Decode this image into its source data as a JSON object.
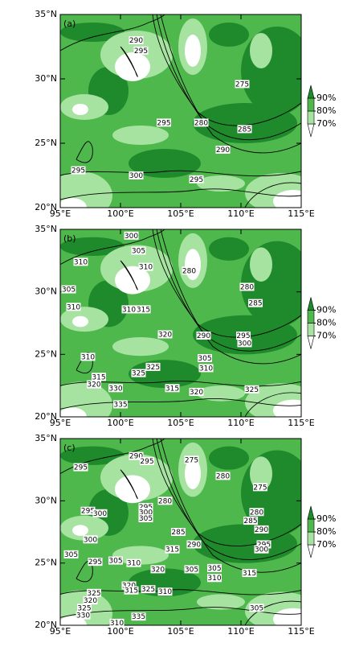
{
  "chart_data": [
    {
      "type": "contour",
      "title": "(a)",
      "xlim": [
        95,
        115
      ],
      "ylim": [
        20,
        35
      ],
      "xticks": [
        {
          "value": 95,
          "label": "95°E"
        },
        {
          "value": 100,
          "label": "100°E"
        },
        {
          "value": 105,
          "label": "105°E"
        },
        {
          "value": 110,
          "label": "110°E"
        },
        {
          "value": 115,
          "label": "115°E"
        }
      ],
      "yticks": [
        {
          "value": 20,
          "label": "20°N"
        },
        {
          "value": 25,
          "label": "25°N"
        },
        {
          "value": 30,
          "label": "30°N"
        },
        {
          "value": 35,
          "label": "35°N"
        }
      ],
      "colorbar": {
        "colors": [
          "#ffffff",
          "#a6e3a0",
          "#4fb84c",
          "#1f8a2b"
        ],
        "ticks": [
          {
            "value": 90,
            "label": "90%"
          },
          {
            "value": 80,
            "label": "80%"
          },
          {
            "value": 70,
            "label": "70%"
          }
        ]
      },
      "contour_labels": {
        "x": [
          101.3,
          101.7,
          110.1,
          103.6,
          106.7,
          110.3,
          108.5,
          96.5,
          101.3,
          106.3
        ],
        "y": [
          33.0,
          32.2,
          29.6,
          26.6,
          26.6,
          26.1,
          24.5,
          22.9,
          22.5,
          22.2
        ],
        "values": [
          290,
          295,
          275,
          295,
          280,
          285,
          290,
          295,
          300,
          295
        ]
      }
    },
    {
      "type": "contour",
      "title": "(b)",
      "xlim": [
        95,
        115
      ],
      "ylim": [
        20,
        35
      ],
      "xticks": [
        {
          "value": 95,
          "label": "95°E"
        },
        {
          "value": 100,
          "label": "100°E"
        },
        {
          "value": 105,
          "label": "105°E"
        },
        {
          "value": 110,
          "label": "110°E"
        },
        {
          "value": 115,
          "label": "115°E"
        }
      ],
      "yticks": [
        {
          "value": 20,
          "label": "20°N"
        },
        {
          "value": 25,
          "label": "25°N"
        },
        {
          "value": 30,
          "label": "30°N"
        },
        {
          "value": 35,
          "label": "35°N"
        }
      ],
      "colorbar": {
        "colors": [
          "#ffffff",
          "#a6e3a0",
          "#4fb84c",
          "#1f8a2b"
        ],
        "ticks": [
          {
            "value": 90,
            "label": "90%"
          },
          {
            "value": 80,
            "label": "80%"
          },
          {
            "value": 70,
            "label": "70%"
          }
        ]
      },
      "contour_labels": {
        "x": [
          100.9,
          101.5,
          96.7,
          102.1,
          105.7,
          95.7,
          96.1,
          100.7,
          101.9,
          110.5,
          111.2,
          103.7,
          106.9,
          110.2,
          110.3,
          107.0,
          107.1,
          97.3,
          98.2,
          97.8,
          102.7,
          101.5,
          99.6,
          100.0,
          104.3,
          106.3,
          110.9
        ],
        "y": [
          34.5,
          33.3,
          32.4,
          32.0,
          31.7,
          30.2,
          28.8,
          28.6,
          28.6,
          30.4,
          29.1,
          26.6,
          26.5,
          26.5,
          25.9,
          24.7,
          23.9,
          24.8,
          23.2,
          22.6,
          24.0,
          23.5,
          22.3,
          21.0,
          22.3,
          22.0,
          22.2
        ],
        "values": [
          300,
          305,
          310,
          310,
          280,
          305,
          310,
          310,
          315,
          280,
          285,
          320,
          290,
          295,
          300,
          305,
          310,
          310,
          315,
          320,
          325,
          325,
          330,
          335,
          315,
          320,
          325
        ]
      }
    },
    {
      "type": "contour",
      "title": "(c)",
      "xlim": [
        95,
        115
      ],
      "ylim": [
        20,
        35
      ],
      "xticks": [
        {
          "value": 95,
          "label": "95°E"
        },
        {
          "value": 100,
          "label": "100°E"
        },
        {
          "value": 105,
          "label": "105°E"
        },
        {
          "value": 110,
          "label": "110°E"
        },
        {
          "value": 115,
          "label": "115°E"
        }
      ],
      "yticks": [
        {
          "value": 20,
          "label": "20°N"
        },
        {
          "value": 25,
          "label": "25°N"
        },
        {
          "value": 30,
          "label": "30°N"
        },
        {
          "value": 35,
          "label": "35°N"
        }
      ],
      "colorbar": {
        "colors": [
          "#ffffff",
          "#a6e3a0",
          "#4fb84c",
          "#1f8a2b"
        ],
        "ticks": [
          {
            "value": 90,
            "label": "90%"
          },
          {
            "value": 80,
            "label": "80%"
          },
          {
            "value": 70,
            "label": "70%"
          }
        ]
      },
      "contour_labels": {
        "x": [
          101.3,
          102.2,
          96.7,
          105.9,
          108.5,
          111.6,
          97.3,
          98.3,
          102.1,
          102.1,
          102.1,
          103.7,
          111.3,
          110.8,
          111.7,
          97.5,
          104.8,
          106.1,
          104.3,
          111.9,
          111.7,
          95.9,
          97.9,
          99.6,
          101.1,
          103.1,
          105.9,
          107.8,
          107.8,
          110.7,
          100.7,
          100.9,
          102.3,
          103.7,
          97.8,
          97.5,
          97.0,
          96.9,
          101.5,
          99.7,
          111.3
        ],
        "y": [
          33.6,
          33.2,
          32.7,
          33.3,
          32.0,
          31.1,
          29.2,
          29.0,
          29.5,
          29.1,
          28.6,
          30.0,
          29.1,
          28.4,
          27.7,
          26.9,
          27.5,
          26.5,
          26.1,
          26.5,
          26.1,
          25.7,
          25.1,
          25.2,
          25.0,
          24.5,
          24.5,
          24.6,
          23.8,
          24.2,
          23.2,
          22.8,
          22.9,
          22.7,
          22.6,
          22.0,
          21.4,
          20.8,
          20.7,
          20.2,
          21.4
        ],
        "values": [
          290,
          295,
          295,
          275,
          280,
          275,
          295,
          300,
          295,
          300,
          305,
          280,
          280,
          285,
          290,
          300,
          285,
          290,
          315,
          295,
          300,
          305,
          295,
          305,
          310,
          320,
          305,
          305,
          310,
          315,
          320,
          315,
          325,
          310,
          325,
          320,
          325,
          330,
          335,
          310,
          305
        ]
      }
    }
  ]
}
